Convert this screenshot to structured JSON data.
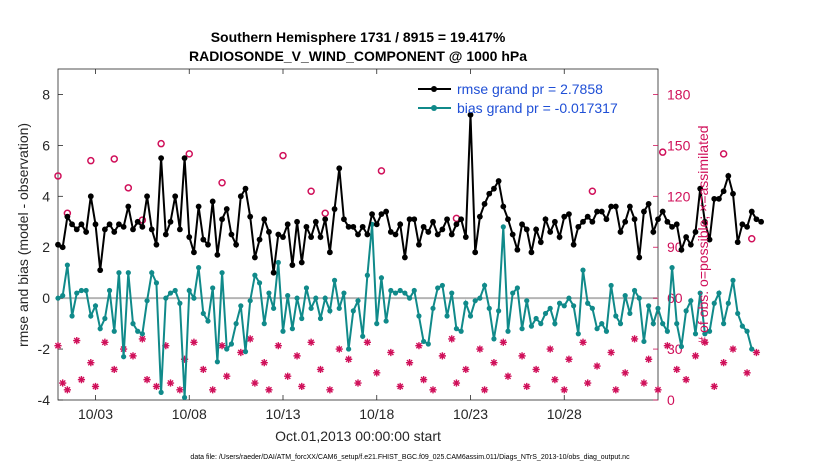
{
  "figure": {
    "title_line1": "Southern Hemisphere 1731 / 8915 = 19.417%",
    "title_line2": "RADIOSONDE_V_WIND_COMPONENT @ 1000 hPa",
    "xlabel": "Oct.01,2013 00:00:00 start",
    "ylabel_left": "rmse and bias (model - observation)",
    "ylabel_right": "# of obs: o=possible; ×=assimilated",
    "footnote": "data file: /Users/raeder/DAI/ATM_forcXX/CAM6_setup/f.e21.FHIST_BGC.f09_025.CAM6assim.011/Diags_NTrS_2013-10/obs_diag_output.nc"
  },
  "colors": {
    "rmse": "#000000",
    "bias": "#108a8a",
    "obs": "#d0105a",
    "legend_text": "#1f4fd6",
    "zero_line": "#b4b4b4"
  },
  "chart_data": {
    "type": "line",
    "x_unit": "days since Oct.01,2013 00:00:00",
    "xlim": [
      0,
      32
    ],
    "x_ticks": [
      2,
      7,
      12,
      17,
      22,
      27
    ],
    "x_tick_labels": [
      "10/03",
      "10/08",
      "10/13",
      "10/18",
      "10/23",
      "10/28"
    ],
    "ylim_left": [
      -4,
      9
    ],
    "y_ticks_left": [
      -4,
      -2,
      0,
      2,
      4,
      6,
      8
    ],
    "ylim_right": [
      0,
      195
    ],
    "y_ticks_right": [
      0,
      30,
      60,
      90,
      120,
      150,
      180
    ],
    "legend_position": "top-right",
    "legend": [
      {
        "label": "rmse grand pr = 2.7858",
        "series": "rmse"
      },
      {
        "label": "bias grand pr = -0.017317",
        "series": "bias"
      }
    ],
    "time_step_days": 0.25,
    "series": [
      {
        "name": "rmse",
        "axis": "left",
        "values": [
          2.1,
          2.0,
          3.2,
          2.9,
          2.7,
          2.9,
          2.6,
          4.0,
          2.9,
          1.1,
          2.7,
          2.9,
          2.6,
          2.9,
          2.8,
          3.6,
          2.7,
          3.0,
          2.8,
          4.0,
          2.7,
          2.1,
          5.5,
          2.5,
          3.0,
          4.0,
          2.7,
          5.5,
          2.4,
          1.8,
          3.6,
          2.3,
          2.1,
          3.8,
          1.7,
          3.1,
          3.5,
          2.5,
          2.1,
          4.0,
          4.3,
          3.2,
          1.6,
          2.3,
          3.1,
          2.6,
          1.0,
          2.5,
          2.4,
          2.9,
          1.3,
          3.0,
          1.4,
          2.8,
          2.4,
          3.0,
          2.4,
          3.1,
          1.8,
          3.5,
          5.1,
          3.1,
          2.8,
          2.8,
          2.5,
          2.8,
          2.5,
          3.3,
          2.9,
          3.3,
          3.4,
          2.6,
          2.5,
          2.9,
          1.6,
          3.1,
          3.1,
          2.1,
          2.8,
          2.6,
          3.0,
          2.5,
          2.7,
          3.1,
          2.5,
          2.9,
          3.1,
          2.4,
          7.2,
          1.8,
          3.2,
          3.7,
          4.1,
          4.3,
          4.6,
          3.6,
          3.1,
          2.5,
          1.9,
          2.9,
          2.7,
          1.8,
          2.7,
          2.2,
          3.1,
          2.6,
          3.0,
          2.4,
          3.2,
          3.3,
          2.1,
          2.8,
          3.0,
          3.2,
          3.0,
          3.4,
          3.4,
          3.1,
          3.6,
          3.6,
          2.6,
          3.0,
          3.6,
          3.1,
          1.6,
          3.4,
          3.7,
          2.6,
          3.1,
          3.4,
          3.0,
          2.8,
          2.9,
          1.9,
          2.4,
          2.1,
          2.6,
          4.3,
          3.0,
          2.3,
          3.9,
          3.9,
          4.2,
          4.8,
          4.1,
          2.2,
          2.9,
          2.8,
          3.4,
          3.1,
          3.0
        ]
      },
      {
        "name": "bias",
        "axis": "left",
        "values": [
          0.0,
          0.1,
          1.3,
          -0.7,
          0.2,
          0.3,
          0.3,
          -0.7,
          -0.3,
          -1.2,
          -0.8,
          0.3,
          -1.3,
          1.0,
          -2.3,
          1.0,
          -1.0,
          -1.3,
          -1.4,
          -0.1,
          1.0,
          0.6,
          -3.7,
          0.0,
          0.2,
          0.3,
          -0.2,
          -3.9,
          0.3,
          0.0,
          1.2,
          -0.6,
          -0.9,
          0.4,
          -2.5,
          1.0,
          -2.0,
          -1.8,
          -1.0,
          -0.3,
          -2.1,
          -0.1,
          0.9,
          0.6,
          -1.0,
          0.2,
          -0.4,
          1.4,
          -1.3,
          0.1,
          -1.2,
          0.0,
          -0.8,
          0.4,
          -0.4,
          0.0,
          -0.8,
          0.0,
          -0.5,
          0.7,
          -0.4,
          0.2,
          -2.0,
          -0.5,
          -0.1,
          -1.5,
          0.9,
          2.9,
          -1.0,
          0.8,
          -0.9,
          0.3,
          0.2,
          0.3,
          0.2,
          0.0,
          0.3,
          -0.7,
          -1.7,
          -1.8,
          -0.4,
          0.4,
          0.5,
          -0.7,
          0.2,
          -1.2,
          -1.3,
          -0.2,
          -0.7,
          -0.1,
          0.0,
          0.5,
          -0.4,
          -1.6,
          -0.5,
          2.8,
          -1.3,
          0.2,
          0.4,
          -1.2,
          -0.1,
          -1.1,
          -0.8,
          -1.0,
          -0.6,
          -0.4,
          -1.0,
          -0.2,
          -0.3,
          0.0,
          -0.3,
          -1.4,
          1.1,
          -0.2,
          -0.4,
          -1.2,
          -1.0,
          -1.3,
          0.5,
          -0.7,
          -1.0,
          0.1,
          -0.6,
          0.3,
          0.0,
          -1.7,
          -0.3,
          -1.0,
          -0.4,
          -1.0,
          -1.3,
          1.2,
          -1.0,
          -1.9,
          -0.5,
          -0.1,
          -1.4,
          0.2,
          -1.4,
          -1.3,
          -0.2,
          0.2,
          -1.0,
          -0.2,
          0.7,
          -0.6,
          -1.1,
          -1.3,
          -2.0
        ]
      },
      {
        "name": "obs possible",
        "axis": "right",
        "marker": "circle",
        "values": [
          132,
          0,
          110,
          0,
          0,
          0,
          0,
          141,
          0,
          0,
          0,
          0,
          142,
          0,
          0,
          125,
          0,
          0,
          106,
          0,
          0,
          0,
          151,
          0,
          0,
          0,
          0,
          0,
          145,
          0,
          0,
          0,
          0,
          0,
          0,
          128,
          0,
          0,
          0,
          0,
          0,
          0,
          0,
          0,
          0,
          0,
          0,
          0,
          144,
          0,
          0,
          0,
          0,
          0,
          123,
          0,
          0,
          110,
          0,
          0,
          0,
          0,
          0,
          0,
          0,
          0,
          0,
          0,
          0,
          135,
          0,
          0,
          0,
          0,
          0,
          0,
          0,
          0,
          0,
          0,
          0,
          0,
          0,
          0,
          0,
          107,
          0,
          0,
          0,
          0,
          0,
          0,
          0,
          0,
          0,
          0,
          0,
          0,
          0,
          0,
          0,
          0,
          0,
          0,
          0,
          0,
          0,
          0,
          0,
          0,
          0,
          0,
          0,
          0,
          123,
          0,
          0,
          0,
          0,
          0,
          0,
          0,
          0,
          0,
          0,
          0,
          0,
          0,
          0,
          146,
          0,
          0,
          0,
          0,
          0,
          0,
          0,
          0,
          0,
          0,
          0,
          0,
          145,
          0,
          0,
          0,
          0,
          0,
          95,
          0
        ]
      },
      {
        "name": "obs assimilated",
        "axis": "right",
        "marker": "asterisk",
        "values": [
          32,
          10,
          6,
          0,
          35,
          12,
          0,
          22,
          8,
          0,
          34,
          0,
          18,
          0,
          30,
          0,
          26,
          0,
          36,
          12,
          0,
          8,
          0,
          32,
          10,
          0,
          6,
          24,
          0,
          34,
          0,
          18,
          0,
          6,
          0,
          32,
          14,
          0,
          0,
          28,
          0,
          36,
          10,
          0,
          22,
          6,
          0,
          32,
          0,
          14,
          0,
          26,
          8,
          0,
          34,
          0,
          18,
          0,
          6,
          0,
          30,
          0,
          24,
          0,
          10,
          0,
          34,
          0,
          16,
          0,
          0,
          28,
          0,
          8,
          0,
          22,
          0,
          32,
          12,
          0,
          6,
          0,
          26,
          0,
          36,
          10,
          0,
          18,
          0,
          0,
          30,
          6,
          0,
          22,
          0,
          34,
          14,
          0,
          0,
          26,
          8,
          0,
          18,
          0,
          0,
          30,
          12,
          0,
          6,
          24,
          0,
          0,
          34,
          10,
          0,
          20,
          0,
          0,
          28,
          6,
          0,
          16,
          0,
          36,
          0,
          10,
          24,
          0,
          6,
          0,
          32,
          0,
          18,
          0,
          12,
          0,
          26,
          0,
          34,
          0,
          8,
          0,
          22,
          0,
          30,
          0,
          0,
          16,
          0,
          28
        ]
      }
    ]
  }
}
